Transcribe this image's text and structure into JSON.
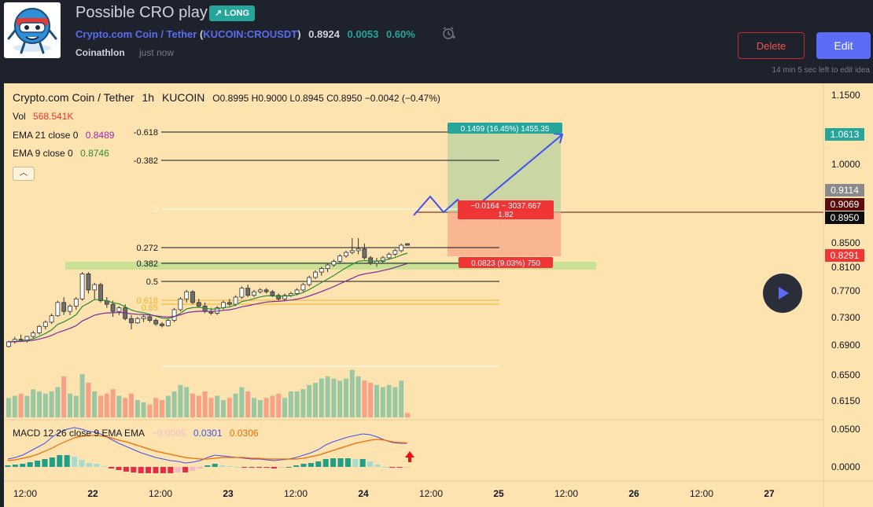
{
  "header": {
    "title": "Possible CRO play",
    "badge": "LONG",
    "symbol_name": "Crypto.com Coin / Tether",
    "symbol_ticker": "KUCOIN:CROUSDT",
    "price": "0.8924",
    "change": "0.0053",
    "change_pct": "0.60%",
    "author": "Coinathlon",
    "published": "just now",
    "delete_label": "Delete",
    "edit_label": "Edit",
    "edit_note": "14 min 5 sec left to edit idea"
  },
  "legend": {
    "symbol": "Crypto.com Coin / Tether",
    "interval": "1h",
    "exchange": "KUCOIN",
    "ohlc": "O0.8995  H0.9000  L0.8945  C0.8950  −0.0042 (−0.47%)",
    "vol_label": "Vol",
    "vol_value": "568.541K",
    "ema21_label": "EMA 21 close 0",
    "ema21_value": "0.8489",
    "ema9_label": "EMA 9 close 0",
    "ema9_value": "0.8746",
    "macd_label": "MACD 12 26 close 9 EMA EMA",
    "macd_hist": "−0.0005",
    "macd_line": "0.0301",
    "macd_signal": "0.0306"
  },
  "colors": {
    "up": "#8fc4a4",
    "down": "#f69a84",
    "candle": "#6f6f6f",
    "ema9": "#2e8b3a",
    "ema21": "#7b2b9a",
    "macd": "#3f51f0",
    "signal": "#ef6c00",
    "profit": "#26a69a",
    "loss": "#ef3535"
  },
  "chart_data": {
    "type": "candlestick",
    "symbol": "KUCOIN:CROUSDT",
    "interval": "1h",
    "price_axis": {
      "ticks": [
        "1.1500",
        "1.0000",
        "0.8500",
        "0.8100",
        "0.7700",
        "0.7300",
        "0.6900",
        "0.6500",
        "0.6150"
      ],
      "labels": [
        {
          "text": "1.0613",
          "kind": "target"
        },
        {
          "text": "0.9114",
          "kind": "grey"
        },
        {
          "text": "0.9069",
          "kind": "dark-red"
        },
        {
          "text": "0.8950",
          "kind": "last"
        },
        {
          "text": "0.8291",
          "kind": "stop"
        }
      ]
    },
    "macd_axis": {
      "ticks": [
        "0.0500",
        "0.0000"
      ]
    },
    "time_axis": [
      "12:00",
      "22",
      "12:00",
      "23",
      "12:00",
      "24",
      "12:00",
      "25",
      "12:00",
      "26",
      "12:00",
      "27"
    ],
    "fib_levels": [
      "-0.618",
      "-0.382",
      "0",
      "0.272",
      "0.382",
      "0.5",
      "0.618",
      "0.65"
    ],
    "position": {
      "direction": "long",
      "target_label": "0.1499 (16.45%) 1455.35",
      "stop_label": "0.0823 (9.03%) 750",
      "center_label_1": "−0.0164 ~ 3037.667",
      "center_label_2": "1.82"
    },
    "candles": [
      [
        0.612,
        0.628,
        0.609,
        0.625
      ],
      [
        0.625,
        0.639,
        0.62,
        0.632
      ],
      [
        0.632,
        0.645,
        0.626,
        0.63
      ],
      [
        0.63,
        0.642,
        0.623,
        0.64
      ],
      [
        0.64,
        0.656,
        0.635,
        0.65
      ],
      [
        0.65,
        0.672,
        0.645,
        0.668
      ],
      [
        0.668,
        0.685,
        0.66,
        0.68
      ],
      [
        0.68,
        0.704,
        0.675,
        0.698
      ],
      [
        0.698,
        0.74,
        0.695,
        0.735
      ],
      [
        0.735,
        0.75,
        0.7,
        0.71
      ],
      [
        0.71,
        0.73,
        0.7,
        0.725
      ],
      [
        0.725,
        0.75,
        0.715,
        0.745
      ],
      [
        0.745,
        0.82,
        0.74,
        0.815
      ],
      [
        0.815,
        0.82,
        0.76,
        0.77
      ],
      [
        0.77,
        0.79,
        0.745,
        0.785
      ],
      [
        0.785,
        0.79,
        0.735,
        0.74
      ],
      [
        0.74,
        0.75,
        0.72,
        0.73
      ],
      [
        0.73,
        0.74,
        0.695,
        0.71
      ],
      [
        0.71,
        0.725,
        0.7,
        0.72
      ],
      [
        0.72,
        0.73,
        0.685,
        0.69
      ],
      [
        0.69,
        0.7,
        0.66,
        0.678
      ],
      [
        0.678,
        0.695,
        0.675,
        0.69
      ],
      [
        0.69,
        0.7,
        0.68,
        0.695
      ],
      [
        0.695,
        0.7,
        0.68,
        0.685
      ],
      [
        0.685,
        0.69,
        0.67,
        0.675
      ],
      [
        0.675,
        0.68,
        0.665,
        0.67
      ],
      [
        0.67,
        0.69,
        0.668,
        0.685
      ],
      [
        0.685,
        0.72,
        0.68,
        0.715
      ],
      [
        0.715,
        0.75,
        0.71,
        0.745
      ],
      [
        0.745,
        0.77,
        0.735,
        0.765
      ],
      [
        0.765,
        0.77,
        0.73,
        0.735
      ],
      [
        0.735,
        0.745,
        0.72,
        0.725
      ],
      [
        0.725,
        0.735,
        0.705,
        0.71
      ],
      [
        0.71,
        0.72,
        0.7,
        0.705
      ],
      [
        0.705,
        0.725,
        0.7,
        0.72
      ],
      [
        0.72,
        0.74,
        0.715,
        0.735
      ],
      [
        0.735,
        0.745,
        0.725,
        0.73
      ],
      [
        0.73,
        0.755,
        0.725,
        0.75
      ],
      [
        0.75,
        0.78,
        0.745,
        0.775
      ],
      [
        0.775,
        0.785,
        0.75,
        0.755
      ],
      [
        0.755,
        0.77,
        0.75,
        0.765
      ],
      [
        0.765,
        0.775,
        0.76,
        0.77
      ],
      [
        0.77,
        0.775,
        0.76,
        0.765
      ],
      [
        0.765,
        0.77,
        0.75,
        0.755
      ],
      [
        0.755,
        0.76,
        0.74,
        0.745
      ],
      [
        0.745,
        0.76,
        0.74,
        0.755
      ],
      [
        0.755,
        0.765,
        0.75,
        0.76
      ],
      [
        0.76,
        0.775,
        0.755,
        0.77
      ],
      [
        0.77,
        0.79,
        0.765,
        0.785
      ],
      [
        0.785,
        0.81,
        0.78,
        0.805
      ],
      [
        0.805,
        0.825,
        0.8,
        0.82
      ],
      [
        0.82,
        0.835,
        0.81,
        0.83
      ],
      [
        0.83,
        0.845,
        0.82,
        0.84
      ],
      [
        0.84,
        0.855,
        0.835,
        0.85
      ],
      [
        0.85,
        0.87,
        0.845,
        0.865
      ],
      [
        0.865,
        0.88,
        0.86,
        0.875
      ],
      [
        0.875,
        0.915,
        0.87,
        0.88
      ],
      [
        0.88,
        0.915,
        0.87,
        0.885
      ],
      [
        0.885,
        0.9,
        0.855,
        0.86
      ],
      [
        0.86,
        0.865,
        0.84,
        0.845
      ],
      [
        0.845,
        0.86,
        0.835,
        0.85
      ],
      [
        0.85,
        0.865,
        0.845,
        0.86
      ],
      [
        0.86,
        0.875,
        0.855,
        0.87
      ],
      [
        0.87,
        0.885,
        0.865,
        0.88
      ],
      [
        0.88,
        0.9,
        0.875,
        0.895
      ],
      [
        0.8995,
        0.9,
        0.8945,
        0.895
      ]
    ],
    "volume": [
      0.45,
      0.5,
      0.55,
      0.5,
      0.65,
      0.6,
      0.55,
      0.6,
      0.7,
      0.95,
      0.55,
      0.5,
      1.0,
      0.8,
      0.6,
      0.5,
      0.55,
      0.65,
      0.5,
      0.45,
      0.55,
      0.4,
      0.35,
      0.3,
      0.45,
      0.4,
      0.5,
      0.6,
      0.75,
      0.7,
      0.55,
      0.5,
      0.6,
      0.45,
      0.5,
      0.4,
      0.45,
      0.55,
      0.7,
      0.6,
      0.45,
      0.4,
      0.45,
      0.5,
      0.55,
      0.45,
      0.6,
      0.6,
      0.65,
      0.75,
      0.8,
      0.9,
      0.95,
      0.9,
      0.85,
      0.9,
      1.1,
      0.95,
      0.85,
      0.8,
      0.75,
      0.7,
      0.75,
      0.7,
      0.85,
      0.1
    ],
    "macd_line": [
      0.01,
      0.012,
      0.015,
      0.02,
      0.025,
      0.03,
      0.038,
      0.044,
      0.048,
      0.05,
      0.048,
      0.045,
      0.044,
      0.04,
      0.035,
      0.03,
      0.026,
      0.022,
      0.018,
      0.015,
      0.012,
      0.01,
      0.008,
      0.007,
      0.005,
      0.006,
      0.008,
      0.012,
      0.015,
      0.014,
      0.013,
      0.012,
      0.011,
      0.01,
      0.01,
      0.009,
      0.008,
      0.009,
      0.01,
      0.012,
      0.015,
      0.018,
      0.022,
      0.028,
      0.032,
      0.035,
      0.038,
      0.04,
      0.042,
      0.041,
      0.038,
      0.034,
      0.031,
      0.03,
      0.03
    ],
    "macd_signal": [
      0.008,
      0.009,
      0.011,
      0.013,
      0.016,
      0.02,
      0.024,
      0.029,
      0.033,
      0.037,
      0.039,
      0.04,
      0.04,
      0.039,
      0.037,
      0.034,
      0.032,
      0.029,
      0.026,
      0.023,
      0.02,
      0.018,
      0.016,
      0.014,
      0.012,
      0.011,
      0.01,
      0.01,
      0.011,
      0.012,
      0.012,
      0.012,
      0.012,
      0.011,
      0.011,
      0.01,
      0.01,
      0.01,
      0.01,
      0.01,
      0.011,
      0.013,
      0.015,
      0.018,
      0.021,
      0.024,
      0.027,
      0.03,
      0.032,
      0.034,
      0.035,
      0.034,
      0.032,
      0.031,
      0.0306
    ],
    "macd_hist": [
      0.002,
      0.003,
      0.004,
      0.006,
      0.008,
      0.01,
      0.012,
      0.015,
      0.015,
      0.013,
      0.009,
      0.005,
      0.004,
      0.001,
      -0.002,
      -0.004,
      -0.006,
      -0.007,
      -0.008,
      -0.008,
      -0.008,
      -0.008,
      -0.008,
      -0.007,
      -0.007,
      -0.005,
      -0.002,
      0.002,
      0.004,
      0.002,
      0.001,
      0.0,
      -0.001,
      -0.001,
      -0.001,
      -0.001,
      -0.002,
      -0.001,
      0.0,
      0.002,
      0.004,
      0.005,
      0.007,
      0.01,
      0.011,
      0.011,
      0.011,
      0.01,
      0.01,
      0.007,
      0.003,
      0.0,
      -0.001,
      -0.001,
      -0.0005
    ]
  }
}
